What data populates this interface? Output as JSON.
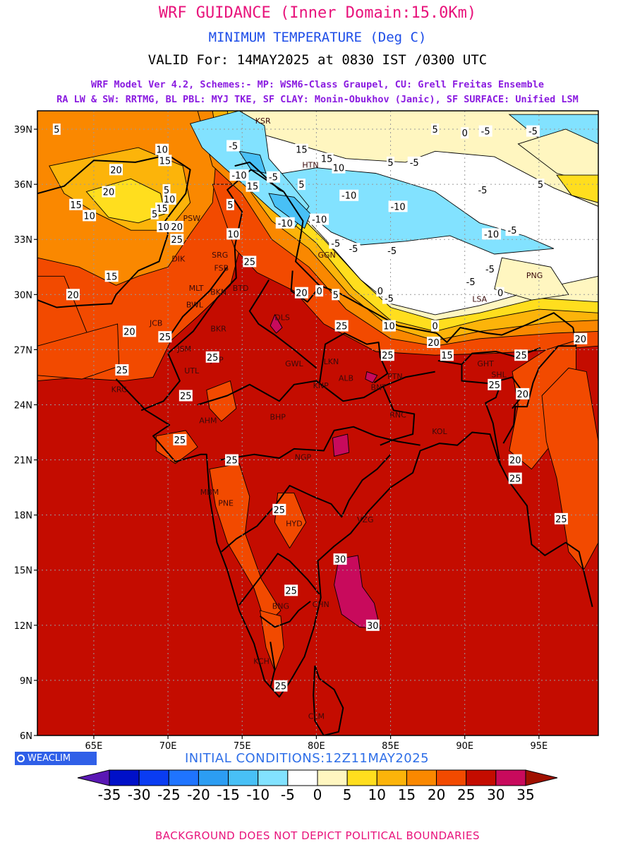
{
  "header": {
    "title": "WRF GUIDANCE (Inner Domain:15.0Km)",
    "subtitle": "MINIMUM TEMPERATURE (Deg C)",
    "valid": "VALID For: 14MAY2025 at 0830 IST /0300 UTC",
    "model_line1": "WRF Model Ver 4.2, Schemes:- MP: WSM6-Class Graupel, CU: Grell Freitas Ensemble",
    "model_line2": "RA LW & SW: RRTMG, BL PBL: MYJ TKE, SF CLAY: Monin-Obukhov (Janic), SF SURFACE: Unified LSM"
  },
  "colors": {
    "title": "#e8137b",
    "subtitle": "#1e4ee8",
    "valid": "#000000",
    "model": "#8a1be0",
    "init": "#2f6fe8",
    "footer": "#e8137b",
    "badge_bg": "#2f5fe8"
  },
  "map": {
    "lat_labels": [
      "39N",
      "36N",
      "33N",
      "30N",
      "27N",
      "24N",
      "21N",
      "18N",
      "15N",
      "12N",
      "9N",
      "6N"
    ],
    "lon_labels": [
      "65E",
      "70E",
      "75E",
      "80E",
      "85E",
      "90E",
      "95E"
    ],
    "contour_labels": [
      {
        "t": "5",
        "lon": 62.5,
        "lat": 39.0
      },
      {
        "t": "20",
        "lon": 66.5,
        "lat": 36.8
      },
      {
        "t": "20",
        "lon": 66.0,
        "lat": 35.6
      },
      {
        "t": "15",
        "lon": 63.8,
        "lat": 34.9
      },
      {
        "t": "10",
        "lon": 64.7,
        "lat": 34.3
      },
      {
        "t": "10",
        "lon": 69.7,
        "lat": 33.7
      },
      {
        "t": "15",
        "lon": 66.2,
        "lat": 31.0
      },
      {
        "t": "20",
        "lon": 63.6,
        "lat": 30.0
      },
      {
        "t": "20",
        "lon": 67.4,
        "lat": 28.0
      },
      {
        "t": "25",
        "lon": 66.9,
        "lat": 25.9
      },
      {
        "t": "25",
        "lon": 69.8,
        "lat": 27.7
      },
      {
        "t": "10",
        "lon": 69.6,
        "lat": 37.9
      },
      {
        "t": "15",
        "lon": 69.8,
        "lat": 37.3
      },
      {
        "t": "5",
        "lon": 69.9,
        "lat": 35.7
      },
      {
        "t": "10",
        "lon": 70.1,
        "lat": 35.2
      },
      {
        "t": "15",
        "lon": 69.6,
        "lat": 34.7
      },
      {
        "t": "20",
        "lon": 70.6,
        "lat": 33.7
      },
      {
        "t": "25",
        "lon": 70.6,
        "lat": 33.0
      },
      {
        "t": "5",
        "lon": 69.1,
        "lat": 34.4
      },
      {
        "t": "-5",
        "lon": 74.4,
        "lat": 38.1
      },
      {
        "t": "-10",
        "lon": 74.8,
        "lat": 36.5
      },
      {
        "t": "5",
        "lon": 74.2,
        "lat": 34.9
      },
      {
        "t": "10",
        "lon": 74.4,
        "lat": 33.3
      },
      {
        "t": "25",
        "lon": 75.5,
        "lat": 31.8
      },
      {
        "t": "15",
        "lon": 75.7,
        "lat": 35.9
      },
      {
        "t": "-5",
        "lon": 77.1,
        "lat": 36.4
      },
      {
        "t": "5",
        "lon": 79.0,
        "lat": 36.0
      },
      {
        "t": "15",
        "lon": 79.0,
        "lat": 37.9
      },
      {
        "t": "15",
        "lon": 80.7,
        "lat": 37.4
      },
      {
        "t": "10",
        "lon": 81.5,
        "lat": 36.9
      },
      {
        "t": "-10",
        "lon": 82.2,
        "lat": 35.4
      },
      {
        "t": "-10",
        "lon": 85.5,
        "lat": 34.8
      },
      {
        "t": "-10",
        "lon": 77.9,
        "lat": 33.9
      },
      {
        "t": "-10",
        "lon": 80.2,
        "lat": 34.1
      },
      {
        "t": "-5",
        "lon": 81.3,
        "lat": 32.8
      },
      {
        "t": "-5",
        "lon": 82.5,
        "lat": 32.5
      },
      {
        "t": "-5",
        "lon": 85.1,
        "lat": 32.4
      },
      {
        "t": "-10",
        "lon": 91.8,
        "lat": 33.3
      },
      {
        "t": "-5",
        "lon": 93.2,
        "lat": 33.5
      },
      {
        "t": "-5",
        "lon": 90.4,
        "lat": 30.7
      },
      {
        "t": "-5",
        "lon": 91.7,
        "lat": 31.4
      },
      {
        "t": "5",
        "lon": 85.0,
        "lat": 37.2
      },
      {
        "t": "-5",
        "lon": 86.6,
        "lat": 37.2
      },
      {
        "t": "5",
        "lon": 88.0,
        "lat": 39.0
      },
      {
        "t": "0",
        "lon": 90.0,
        "lat": 38.8
      },
      {
        "t": "-5",
        "lon": 91.4,
        "lat": 38.9
      },
      {
        "t": "-5",
        "lon": 94.6,
        "lat": 38.9
      },
      {
        "t": "-5",
        "lon": 91.2,
        "lat": 35.7
      },
      {
        "t": "5",
        "lon": 95.1,
        "lat": 36.0
      },
      {
        "t": "0",
        "lon": 92.4,
        "lat": 30.1
      },
      {
        "t": "0",
        "lon": 88.0,
        "lat": 28.3
      },
      {
        "t": "0",
        "lon": 84.3,
        "lat": 30.2
      },
      {
        "t": "20",
        "lon": 79.0,
        "lat": 30.1
      },
      {
        "t": "0",
        "lon": 80.2,
        "lat": 30.2
      },
      {
        "t": "5",
        "lon": 81.3,
        "lat": 30.0
      },
      {
        "t": "-5",
        "lon": 84.9,
        "lat": 29.8
      },
      {
        "t": "10",
        "lon": 84.9,
        "lat": 28.3
      },
      {
        "t": "25",
        "lon": 81.7,
        "lat": 28.3
      },
      {
        "t": "25",
        "lon": 84.8,
        "lat": 26.7
      },
      {
        "t": "15",
        "lon": 88.8,
        "lat": 26.7
      },
      {
        "t": "20",
        "lon": 87.9,
        "lat": 27.4
      },
      {
        "t": "25",
        "lon": 93.8,
        "lat": 26.7
      },
      {
        "t": "20",
        "lon": 97.8,
        "lat": 27.6
      },
      {
        "t": "25",
        "lon": 92.0,
        "lat": 25.1
      },
      {
        "t": "20",
        "lon": 93.9,
        "lat": 24.6
      },
      {
        "t": "20",
        "lon": 93.4,
        "lat": 21.0
      },
      {
        "t": "25",
        "lon": 93.4,
        "lat": 20.0
      },
      {
        "t": "25",
        "lon": 96.5,
        "lat": 17.8
      },
      {
        "t": "25",
        "lon": 73.0,
        "lat": 26.6
      },
      {
        "t": "25",
        "lon": 71.2,
        "lat": 24.5
      },
      {
        "t": "25",
        "lon": 70.8,
        "lat": 22.1
      },
      {
        "t": "25",
        "lon": 74.3,
        "lat": 21.0
      },
      {
        "t": "25",
        "lon": 77.5,
        "lat": 18.3
      },
      {
        "t": "25",
        "lon": 78.3,
        "lat": 13.9
      },
      {
        "t": "25",
        "lon": 77.6,
        "lat": 8.7
      },
      {
        "t": "30",
        "lon": 81.6,
        "lat": 15.6
      },
      {
        "t": "30",
        "lon": 83.8,
        "lat": 12.0
      }
    ],
    "city_labels": [
      {
        "t": "KSR",
        "lon": 76.4,
        "lat": 39.3
      },
      {
        "t": "HTN",
        "lon": 79.6,
        "lat": 36.9
      },
      {
        "t": "PSW",
        "lon": 71.6,
        "lat": 34.0
      },
      {
        "t": "SRG",
        "lon": 73.5,
        "lat": 32.0
      },
      {
        "t": "FSB",
        "lon": 73.6,
        "lat": 31.3
      },
      {
        "t": "DIK",
        "lon": 70.7,
        "lat": 31.8
      },
      {
        "t": "GGN",
        "lon": 80.7,
        "lat": 32.0
      },
      {
        "t": "PNG",
        "lon": 94.7,
        "lat": 30.9
      },
      {
        "t": "LSA",
        "lon": 91.0,
        "lat": 29.6
      },
      {
        "t": "MLT",
        "lon": 71.9,
        "lat": 30.2
      },
      {
        "t": "BWL",
        "lon": 71.8,
        "lat": 29.3
      },
      {
        "t": "BTD",
        "lon": 74.9,
        "lat": 30.2
      },
      {
        "t": "BKN",
        "lon": 73.4,
        "lat": 30.0
      },
      {
        "t": "DLS",
        "lon": 77.7,
        "lat": 28.6
      },
      {
        "t": "JCB",
        "lon": 69.2,
        "lat": 28.3
      },
      {
        "t": "BKR",
        "lon": 73.4,
        "lat": 28.0
      },
      {
        "t": "JSM",
        "lon": 71.1,
        "lat": 26.9
      },
      {
        "t": "JDP",
        "lon": 73.3,
        "lat": 26.3
      },
      {
        "t": "UTL",
        "lon": 71.6,
        "lat": 25.7
      },
      {
        "t": "LKN",
        "lon": 81.0,
        "lat": 26.2
      },
      {
        "t": "GWL",
        "lon": 78.5,
        "lat": 26.1
      },
      {
        "t": "PTN",
        "lon": 85.3,
        "lat": 25.4
      },
      {
        "t": "ALB",
        "lon": 82.0,
        "lat": 25.3
      },
      {
        "t": "KNP",
        "lon": 80.3,
        "lat": 24.9
      },
      {
        "t": "BNT",
        "lon": 84.2,
        "lat": 24.8
      },
      {
        "t": "GHT",
        "lon": 91.4,
        "lat": 26.1
      },
      {
        "t": "SHL",
        "lon": 92.3,
        "lat": 25.5
      },
      {
        "t": "KRC",
        "lon": 66.7,
        "lat": 24.7
      },
      {
        "t": "AHM",
        "lon": 72.7,
        "lat": 23.0
      },
      {
        "t": "BHP",
        "lon": 77.4,
        "lat": 23.2
      },
      {
        "t": "RNC",
        "lon": 85.5,
        "lat": 23.3
      },
      {
        "t": "KOL",
        "lon": 88.3,
        "lat": 22.4
      },
      {
        "t": "NGP",
        "lon": 79.1,
        "lat": 21.0
      },
      {
        "t": "MBM",
        "lon": 72.8,
        "lat": 19.1
      },
      {
        "t": "PNE",
        "lon": 73.9,
        "lat": 18.5
      },
      {
        "t": "HYD",
        "lon": 78.5,
        "lat": 17.4
      },
      {
        "t": "VZG",
        "lon": 83.3,
        "lat": 17.6
      },
      {
        "t": "BNG",
        "lon": 77.6,
        "lat": 12.9
      },
      {
        "t": "CHN",
        "lon": 80.3,
        "lat": 13.0
      },
      {
        "t": "KCH",
        "lon": 76.3,
        "lat": 9.9
      },
      {
        "t": "CLM",
        "lon": 80.0,
        "lat": 6.9
      }
    ]
  },
  "initial_conditions": "INITIAL CONDITIONS:12Z11MAY2025",
  "badge": "WEACLIM",
  "colorbar": {
    "ticks": [
      "-35",
      "-30",
      "-25",
      "-20",
      "-15",
      "-10",
      "-5",
      "0",
      "5",
      "10",
      "15",
      "20",
      "25",
      "30",
      "35"
    ],
    "colors": [
      "#5a18b4",
      "#0010c8",
      "#0a3cf2",
      "#1f74ff",
      "#2c9df2",
      "#48c0f6",
      "#82e2ff",
      "#ffffff",
      "#fff6c0",
      "#ffde1e",
      "#fcb40a",
      "#fa8800",
      "#f24a00",
      "#c40c00",
      "#c80a5c",
      "#a01000"
    ]
  },
  "footer": "BACKGROUND DOES NOT DEPICT POLITICAL BOUNDARIES"
}
